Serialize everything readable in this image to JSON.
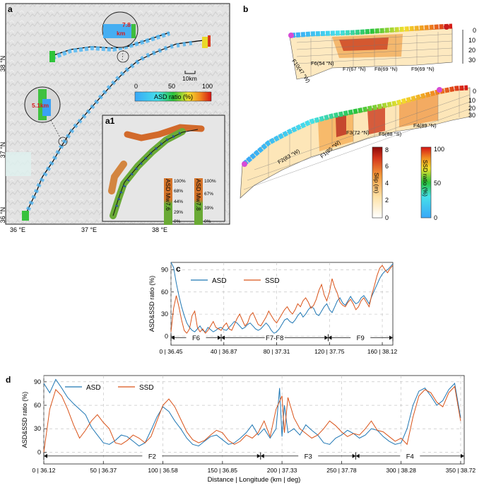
{
  "panels": {
    "a": {
      "letter": "a",
      "zoom1_depth": "7.8",
      "zoom1_unit": "km",
      "zoom2_depth": "5.1km",
      "scalebar": "10km",
      "colorbar_ticks": [
        "0",
        "50",
        "100"
      ],
      "colorbar_label": "ASD ratio (%)",
      "lat_labels": [
        "38 °N",
        "37 °N",
        "36 °N"
      ],
      "lon_labels": [
        "36 °E",
        "37 °E",
        "38 °E"
      ],
      "inset": {
        "letter": "a1",
        "bar1_title": "ASD Mw7.6",
        "bar1_ticks": [
          "100%",
          "68%",
          "44%",
          "29%",
          "0%"
        ],
        "bar2_title": "ASD Mw7.8",
        "bar2_ticks": [
          "100%",
          "67%",
          "39%",
          "0%"
        ]
      }
    },
    "b": {
      "letter": "b",
      "depth_ticks": [
        "0",
        "10",
        "20",
        "30"
      ],
      "fault_labels_top": [
        "F10(47 °W)",
        "F6(54 °N)",
        "F7(67 °N)",
        "F8(69 °N)",
        "F9(69 °N)"
      ],
      "fault_labels_bottom": [
        "F2(83 °W)",
        "F1(85 °W)",
        "F3(72 °N)",
        "F5(88 °S)",
        "F4(89 °N)"
      ],
      "slip_bar": {
        "label": "Slip (m)",
        "ticks": [
          "8",
          "6",
          "4",
          "2",
          "0"
        ]
      },
      "ssd_bar": {
        "label": "SSD ratio (%)",
        "ticks": [
          "100",
          "50",
          "0"
        ]
      }
    }
  },
  "chart_data": [
    {
      "id": "c",
      "type": "line",
      "letter": "c",
      "ylabel": "ASD&SSD ratio (%)",
      "xlim": [
        0,
        168
      ],
      "ylim": [
        -12,
        100
      ],
      "yticks": [
        0,
        30,
        60,
        90
      ],
      "xticks": [
        0,
        40,
        80,
        120,
        160
      ],
      "xtick_labels": [
        "0 | 36.45",
        "40 | 36.87",
        "80 | 37.31",
        "120 | 37.75",
        "160 | 38.12"
      ],
      "segments": [
        {
          "label": "F6",
          "from": 0,
          "to": 38
        },
        {
          "label": "F7-F8",
          "from": 38,
          "to": 119
        },
        {
          "label": "F9",
          "from": 119,
          "to": 168
        }
      ],
      "series": [
        {
          "name": "ASD",
          "color": "#1f77b4",
          "x": [
            0,
            2,
            4,
            6,
            8,
            10,
            12,
            14,
            16,
            18,
            20,
            22,
            24,
            26,
            28,
            30,
            32,
            34,
            36,
            38,
            40,
            42,
            44,
            46,
            48,
            50,
            52,
            54,
            56,
            58,
            60,
            62,
            64,
            66,
            68,
            70,
            72,
            74,
            76,
            78,
            80,
            82,
            84,
            86,
            88,
            90,
            92,
            94,
            96,
            98,
            100,
            102,
            104,
            106,
            108,
            110,
            112,
            114,
            116,
            118,
            120,
            122,
            124,
            126,
            128,
            130,
            132,
            134,
            136,
            138,
            140,
            142,
            144,
            146,
            148,
            150,
            152,
            154,
            156,
            158,
            160,
            162,
            164,
            166,
            168
          ],
          "values": [
            100,
            93,
            72,
            55,
            40,
            28,
            18,
            12,
            8,
            6,
            10,
            14,
            8,
            6,
            12,
            9,
            6,
            8,
            11,
            12,
            9,
            8,
            12,
            16,
            20,
            18,
            14,
            10,
            12,
            16,
            18,
            14,
            10,
            8,
            10,
            14,
            18,
            14,
            8,
            4,
            6,
            10,
            16,
            22,
            24,
            20,
            18,
            22,
            28,
            32,
            26,
            30,
            36,
            40,
            38,
            30,
            28,
            34,
            40,
            44,
            36,
            32,
            40,
            48,
            52,
            45,
            42,
            48,
            54,
            48,
            44,
            46,
            52,
            55,
            50,
            44,
            54,
            62,
            70,
            78,
            84,
            88,
            90,
            94,
            98
          ]
        },
        {
          "name": "SSD",
          "color": "#d95319",
          "x": [
            0,
            2,
            4,
            6,
            8,
            10,
            12,
            14,
            16,
            18,
            20,
            22,
            24,
            26,
            28,
            30,
            32,
            34,
            36,
            38,
            40,
            42,
            44,
            46,
            48,
            50,
            52,
            54,
            56,
            58,
            60,
            62,
            64,
            66,
            68,
            70,
            72,
            74,
            76,
            78,
            80,
            82,
            84,
            86,
            88,
            90,
            92,
            94,
            96,
            98,
            100,
            102,
            104,
            106,
            108,
            110,
            112,
            114,
            116,
            118,
            120,
            122,
            124,
            126,
            128,
            130,
            132,
            134,
            136,
            138,
            140,
            142,
            144,
            146,
            148,
            150,
            152,
            154,
            156,
            158,
            160,
            162,
            164,
            166,
            168
          ],
          "values": [
            6,
            38,
            55,
            40,
            22,
            8,
            4,
            10,
            28,
            34,
            12,
            6,
            10,
            4,
            8,
            14,
            20,
            12,
            10,
            8,
            14,
            18,
            10,
            8,
            16,
            24,
            30,
            22,
            14,
            18,
            28,
            32,
            24,
            16,
            14,
            20,
            26,
            34,
            28,
            22,
            18,
            24,
            30,
            36,
            40,
            34,
            30,
            36,
            44,
            40,
            48,
            52,
            46,
            38,
            42,
            50,
            62,
            70,
            56,
            48,
            60,
            78,
            66,
            58,
            46,
            42,
            40,
            46,
            50,
            44,
            36,
            40,
            48,
            52,
            46,
            40,
            56,
            68,
            82,
            92,
            96,
            90,
            86,
            92,
            96
          ]
        }
      ]
    },
    {
      "id": "d",
      "type": "line",
      "letter": "d",
      "xlabel": "Distance | Longitude (km | deg)",
      "ylabel": "ASD&SSD ratio (%)",
      "xlim": [
        0,
        353
      ],
      "ylim": [
        -15,
        98
      ],
      "yticks": [
        0,
        30,
        60,
        90
      ],
      "xticks": [
        0,
        50,
        100,
        150,
        200,
        250,
        300,
        350
      ],
      "xtick_labels": [
        "0 | 36.12",
        "50 | 36.37",
        "100 | 36.58",
        "150 | 36.85",
        "200 | 37.33",
        "250 | 37.78",
        "300 | 38.28",
        "350 | 38.72"
      ],
      "segments": [
        {
          "label": "F2",
          "from": 0,
          "to": 182
        },
        {
          "label": "F3",
          "from": 182,
          "to": 262
        },
        {
          "label": "F4",
          "from": 262,
          "to": 353
        }
      ],
      "series": [
        {
          "name": "ASD",
          "color": "#1f77b4",
          "x": [
            0,
            5,
            10,
            15,
            20,
            25,
            30,
            35,
            40,
            45,
            50,
            55,
            60,
            65,
            70,
            75,
            80,
            85,
            90,
            95,
            100,
            105,
            110,
            115,
            120,
            125,
            130,
            135,
            140,
            145,
            150,
            155,
            160,
            165,
            170,
            175,
            180,
            185,
            190,
            195,
            198,
            200,
            202,
            205,
            210,
            215,
            220,
            225,
            230,
            235,
            240,
            245,
            250,
            255,
            260,
            265,
            270,
            275,
            280,
            285,
            290,
            295,
            300,
            305,
            310,
            315,
            320,
            325,
            330,
            335,
            340,
            345,
            350
          ],
          "values": [
            88,
            76,
            93,
            82,
            70,
            62,
            55,
            48,
            32,
            22,
            12,
            10,
            15,
            22,
            20,
            14,
            8,
            12,
            28,
            45,
            58,
            52,
            40,
            30,
            18,
            10,
            8,
            14,
            20,
            22,
            16,
            10,
            12,
            18,
            25,
            35,
            22,
            30,
            18,
            30,
            82,
            20,
            60,
            25,
            30,
            22,
            35,
            28,
            22,
            12,
            10,
            18,
            22,
            28,
            24,
            18,
            22,
            30,
            28,
            20,
            14,
            10,
            12,
            30,
            60,
            78,
            82,
            72,
            60,
            66,
            80,
            88,
            44
          ]
        },
        {
          "name": "SSD",
          "color": "#d95319",
          "x": [
            0,
            5,
            10,
            15,
            20,
            25,
            30,
            35,
            40,
            45,
            50,
            55,
            60,
            65,
            70,
            75,
            80,
            85,
            90,
            95,
            100,
            105,
            110,
            115,
            120,
            125,
            130,
            135,
            140,
            145,
            150,
            155,
            160,
            165,
            170,
            175,
            180,
            185,
            190,
            195,
            200,
            202,
            205,
            210,
            215,
            220,
            225,
            230,
            235,
            240,
            245,
            250,
            255,
            260,
            265,
            270,
            275,
            280,
            285,
            290,
            295,
            300,
            305,
            310,
            315,
            320,
            325,
            330,
            335,
            340,
            345,
            350
          ],
          "values": [
            0,
            55,
            80,
            72,
            55,
            35,
            18,
            28,
            40,
            48,
            38,
            30,
            12,
            10,
            15,
            22,
            18,
            12,
            20,
            40,
            60,
            68,
            58,
            42,
            26,
            16,
            12,
            15,
            22,
            28,
            25,
            15,
            10,
            14,
            22,
            18,
            25,
            40,
            20,
            55,
            72,
            25,
            70,
            44,
            30,
            24,
            18,
            22,
            30,
            40,
            34,
            26,
            20,
            24,
            22,
            30,
            40,
            28,
            26,
            20,
            14,
            18,
            10,
            45,
            72,
            80,
            76,
            64,
            58,
            76,
            84,
            40
          ]
        }
      ]
    }
  ]
}
